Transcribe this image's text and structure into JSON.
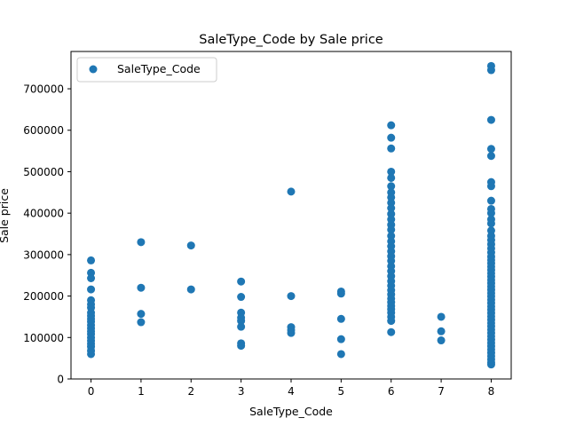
{
  "chart_data": {
    "type": "scatter",
    "title": "SaleType_Code by Sale price",
    "xlabel": "SaleType_Code",
    "ylabel": "Sale price",
    "xlim": [
      -0.4,
      8.4
    ],
    "ylim": [
      0,
      790000
    ],
    "xticks": [
      0,
      1,
      2,
      3,
      4,
      5,
      6,
      7,
      8
    ],
    "yticks": [
      0,
      100000,
      200000,
      300000,
      400000,
      500000,
      600000,
      700000
    ],
    "legend": {
      "position": "top-left",
      "entries": [
        "SaleType_Code"
      ]
    },
    "grid": false,
    "marker_color": "#1f77b4",
    "series": [
      {
        "name": "SaleType_Code",
        "points": [
          [
            0,
            286000
          ],
          [
            0,
            256000
          ],
          [
            0,
            243000
          ],
          [
            0,
            216000
          ],
          [
            0,
            190000
          ],
          [
            0,
            180000
          ],
          [
            0,
            172000
          ],
          [
            0,
            160000
          ],
          [
            0,
            152000
          ],
          [
            0,
            145000
          ],
          [
            0,
            138000
          ],
          [
            0,
            130000
          ],
          [
            0,
            122000
          ],
          [
            0,
            115000
          ],
          [
            0,
            108000
          ],
          [
            0,
            100000
          ],
          [
            0,
            92000
          ],
          [
            0,
            85000
          ],
          [
            0,
            78000
          ],
          [
            0,
            68000
          ],
          [
            0,
            60000
          ],
          [
            1,
            330000
          ],
          [
            1,
            220000
          ],
          [
            1,
            157000
          ],
          [
            1,
            137000
          ],
          [
            2,
            322000
          ],
          [
            2,
            216000
          ],
          [
            3,
            235000
          ],
          [
            3,
            198000
          ],
          [
            3,
            160000
          ],
          [
            3,
            148000
          ],
          [
            3,
            140000
          ],
          [
            3,
            126000
          ],
          [
            3,
            86000
          ],
          [
            3,
            80000
          ],
          [
            4,
            452000
          ],
          [
            4,
            200000
          ],
          [
            4,
            125000
          ],
          [
            4,
            118000
          ],
          [
            4,
            111000
          ],
          [
            5,
            211000
          ],
          [
            5,
            206000
          ],
          [
            5,
            145000
          ],
          [
            5,
            96000
          ],
          [
            5,
            60000
          ],
          [
            6,
            612000
          ],
          [
            6,
            582000
          ],
          [
            6,
            556000
          ],
          [
            6,
            500000
          ],
          [
            6,
            485000
          ],
          [
            6,
            465000
          ],
          [
            6,
            450000
          ],
          [
            6,
            438000
          ],
          [
            6,
            425000
          ],
          [
            6,
            412000
          ],
          [
            6,
            398000
          ],
          [
            6,
            385000
          ],
          [
            6,
            372000
          ],
          [
            6,
            360000
          ],
          [
            6,
            345000
          ],
          [
            6,
            332000
          ],
          [
            6,
            320000
          ],
          [
            6,
            308000
          ],
          [
            6,
            296000
          ],
          [
            6,
            285000
          ],
          [
            6,
            272000
          ],
          [
            6,
            260000
          ],
          [
            6,
            248000
          ],
          [
            6,
            236000
          ],
          [
            6,
            225000
          ],
          [
            6,
            214000
          ],
          [
            6,
            204000
          ],
          [
            6,
            194000
          ],
          [
            6,
            185000
          ],
          [
            6,
            176000
          ],
          [
            6,
            168000
          ],
          [
            6,
            160000
          ],
          [
            6,
            150000
          ],
          [
            6,
            140000
          ],
          [
            6,
            113000
          ],
          [
            7,
            150000
          ],
          [
            7,
            115000
          ],
          [
            7,
            93000
          ],
          [
            8,
            755000
          ],
          [
            8,
            745000
          ],
          [
            8,
            625000
          ],
          [
            8,
            555000
          ],
          [
            8,
            538000
          ],
          [
            8,
            475000
          ],
          [
            8,
            465000
          ],
          [
            8,
            430000
          ],
          [
            8,
            410000
          ],
          [
            8,
            400000
          ],
          [
            8,
            385000
          ],
          [
            8,
            375000
          ],
          [
            8,
            358000
          ],
          [
            8,
            345000
          ],
          [
            8,
            335000
          ],
          [
            8,
            325000
          ],
          [
            8,
            315000
          ],
          [
            8,
            305000
          ],
          [
            8,
            295000
          ],
          [
            8,
            287000
          ],
          [
            8,
            279000
          ],
          [
            8,
            271000
          ],
          [
            8,
            263000
          ],
          [
            8,
            255000
          ],
          [
            8,
            247000
          ],
          [
            8,
            239000
          ],
          [
            8,
            231000
          ],
          [
            8,
            223000
          ],
          [
            8,
            215000
          ],
          [
            8,
            207000
          ],
          [
            8,
            199000
          ],
          [
            8,
            191000
          ],
          [
            8,
            183000
          ],
          [
            8,
            175000
          ],
          [
            8,
            167000
          ],
          [
            8,
            159000
          ],
          [
            8,
            151000
          ],
          [
            8,
            143000
          ],
          [
            8,
            135000
          ],
          [
            8,
            127000
          ],
          [
            8,
            119000
          ],
          [
            8,
            111000
          ],
          [
            8,
            103000
          ],
          [
            8,
            95000
          ],
          [
            8,
            87000
          ],
          [
            8,
            79000
          ],
          [
            8,
            71000
          ],
          [
            8,
            63000
          ],
          [
            8,
            55000
          ],
          [
            8,
            47000
          ],
          [
            8,
            40000
          ],
          [
            8,
            35000
          ]
        ]
      }
    ]
  }
}
